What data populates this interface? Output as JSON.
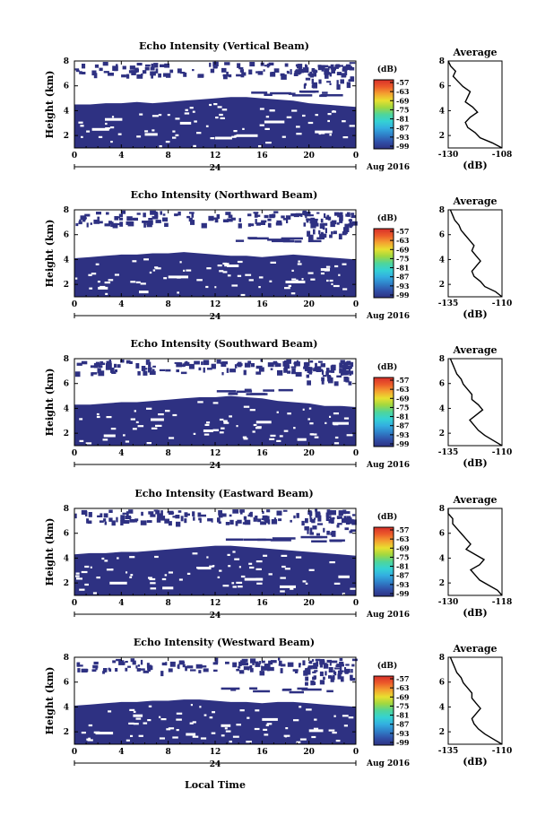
{
  "chart_data": {
    "type": "heatmap",
    "panels": [
      {
        "title": "Echo Intensity (Vertical Beam)",
        "ylabel": "Height (km)",
        "avg_ticks_x": [
          "-130",
          "-108"
        ],
        "avg_xlim": [
          -130,
          -108
        ],
        "avg_profile": [
          -108,
          -112,
          -117,
          -119,
          -122,
          -123,
          -121,
          -118,
          -120,
          -123,
          -122,
          -121,
          -124,
          -126,
          -128,
          -127,
          -129,
          -130
        ],
        "band_top": [
          4.5,
          4.5,
          4.6,
          4.6,
          4.7,
          4.6,
          4.7,
          4.8,
          4.9,
          5.0,
          5.1,
          5.1,
          5.0,
          4.9,
          4.8,
          4.6,
          4.5,
          4.4,
          4.3
        ],
        "gaps": [
          [
            1.5,
            2.6
          ],
          [
            6.0,
            2.2
          ],
          [
            12.0,
            1.9
          ],
          [
            13.8,
            2.1
          ],
          [
            20.5,
            2.4
          ],
          [
            2.6,
            3.4
          ],
          [
            9.0,
            3.1
          ],
          [
            16.2,
            3.2
          ]
        ]
      },
      {
        "title": "Echo Intensity (Northward Beam)",
        "ylabel": "Height (km)",
        "avg_ticks_x": [
          "-135",
          "-110"
        ],
        "avg_xlim": [
          -135,
          -110
        ],
        "avg_profile": [
          -110,
          -113,
          -118,
          -120,
          -123,
          -124,
          -122,
          -120,
          -122,
          -124,
          -123,
          -125,
          -127,
          -129,
          -130,
          -132,
          -133,
          -134
        ],
        "band_top": [
          4.1,
          4.2,
          4.3,
          4.4,
          4.4,
          4.5,
          4.5,
          4.6,
          4.5,
          4.4,
          4.3,
          4.3,
          4.2,
          4.3,
          4.4,
          4.3,
          4.2,
          4.1,
          4.0
        ],
        "gaps": [
          [
            2.0,
            1.8
          ],
          [
            8.0,
            2.7
          ],
          [
            13.0,
            3.6
          ],
          [
            18.0,
            2.3
          ],
          [
            21.0,
            3.3
          ],
          [
            5.5,
            1.5
          ]
        ]
      },
      {
        "title": "Echo Intensity (Southward Beam)",
        "ylabel": "Height (km)",
        "avg_ticks_x": [
          "-135",
          "-110"
        ],
        "avg_xlim": [
          -135,
          -110
        ],
        "avg_profile": [
          -110,
          -114,
          -118,
          -121,
          -123,
          -125,
          -122,
          -119,
          -121,
          -124,
          -124,
          -126,
          -128,
          -129,
          -131,
          -132,
          -133,
          -134
        ],
        "band_top": [
          4.3,
          4.3,
          4.4,
          4.5,
          4.5,
          4.6,
          4.7,
          4.8,
          4.9,
          4.9,
          5.0,
          4.9,
          4.8,
          4.6,
          4.5,
          4.4,
          4.2,
          4.2,
          4.1
        ],
        "gaps": [
          [
            2.5,
            1.9
          ],
          [
            6.5,
            3.2
          ],
          [
            11.0,
            2.3
          ],
          [
            15.5,
            3.0
          ],
          [
            19.0,
            1.6
          ],
          [
            22.0,
            2.9
          ]
        ]
      },
      {
        "title": "Echo Intensity (Eastward Beam)",
        "ylabel": "Height (km)",
        "avg_ticks_x": [
          "-130",
          "-118"
        ],
        "avg_xlim": [
          -130,
          -118
        ],
        "avg_profile": [
          -118,
          -119,
          -121,
          -123,
          -124,
          -125,
          -123,
          -122,
          -124,
          -126,
          -125,
          -126,
          -127,
          -128,
          -129,
          -129,
          -130,
          -130
        ],
        "band_top": [
          4.3,
          4.4,
          4.4,
          4.5,
          4.5,
          4.6,
          4.7,
          4.8,
          4.9,
          5.0,
          5.0,
          4.9,
          4.8,
          4.7,
          4.6,
          4.5,
          4.4,
          4.3,
          4.2
        ],
        "gaps": [
          [
            3.0,
            2.1
          ],
          [
            7.5,
            1.7
          ],
          [
            10.5,
            3.3
          ],
          [
            14.5,
            2.4
          ],
          [
            17.5,
            1.8
          ],
          [
            22.5,
            2.6
          ]
        ]
      },
      {
        "title": "Echo Intensity (Westward Beam)",
        "ylabel": "Height (km)",
        "avg_ticks_x": [
          "-135",
          "-110"
        ],
        "avg_xlim": [
          -135,
          -110
        ],
        "avg_profile": [
          -110,
          -114,
          -118,
          -121,
          -123,
          -124,
          -122,
          -120,
          -122,
          -124,
          -124,
          -126,
          -128,
          -129,
          -131,
          -132,
          -133,
          -134
        ],
        "band_top": [
          4.1,
          4.2,
          4.3,
          4.4,
          4.4,
          4.5,
          4.5,
          4.6,
          4.6,
          4.5,
          4.4,
          4.4,
          4.3,
          4.4,
          4.4,
          4.3,
          4.2,
          4.1,
          4.0
        ],
        "gaps": [
          [
            1.8,
            2.0
          ],
          [
            5.0,
            3.4
          ],
          [
            9.5,
            1.9
          ],
          [
            12.5,
            2.6
          ],
          [
            16.0,
            3.1
          ],
          [
            20.0,
            2.2
          ]
        ]
      }
    ],
    "xlim": [
      0,
      24
    ],
    "ylim": [
      1,
      8
    ],
    "x_ticks": [
      "0",
      "4",
      "8",
      "12",
      "16",
      "20",
      "0"
    ],
    "date_center": "24",
    "date_label": "Aug 2016",
    "y_ticks": [
      "2",
      "4",
      "6",
      "8"
    ],
    "xlabel": "Local Time",
    "avg_title": "Average",
    "avg_xlabel": "(dB)",
    "colorbar_unit": "(dB)",
    "colorbar_ticks": [
      "-57",
      "-63",
      "-69",
      "-75",
      "-81",
      "-87",
      "-93",
      "-99"
    ],
    "colormap": [
      "#2e3182",
      "#3050a8",
      "#2f7fc8",
      "#33aee0",
      "#34d2d4",
      "#4fd59a",
      "#a0d840",
      "#e8e030",
      "#f4a030",
      "#ec5a2a",
      "#d8302a"
    ]
  }
}
